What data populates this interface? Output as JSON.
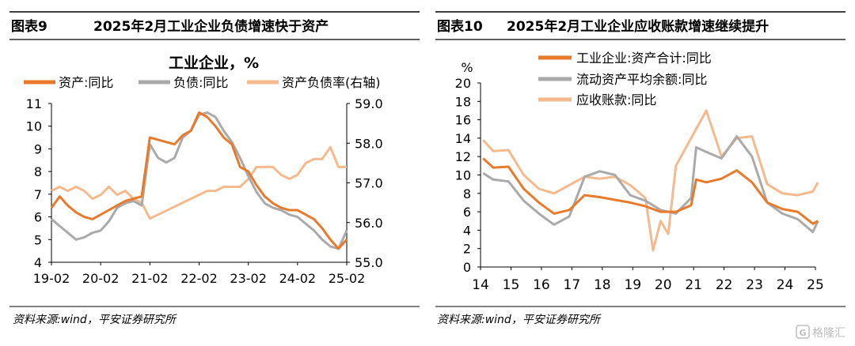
{
  "panels": [
    {
      "fig_label": "图表9",
      "title": "2025年2月工业企业负债增速快于资产",
      "source": "资料来源:wind，平安证券研究所"
    },
    {
      "fig_label": "图表10",
      "title": "2025年2月工业企业应收账款增速继续提升",
      "source": "资料来源:wind，平安证券研究所"
    }
  ],
  "watermark": "格隆汇",
  "colors": {
    "orange": "#E87A2C",
    "gray": "#AAAAAA",
    "peach": "#F5B98E",
    "rule": "#000000"
  },
  "chart_data": [
    {
      "type": "line",
      "title": "工业企业，%",
      "x_ticks": [
        "19-02",
        "20-02",
        "21-02",
        "22-02",
        "23-02",
        "24-02",
        "25-02"
      ],
      "y_left": {
        "range": [
          4,
          11
        ],
        "ticks": [
          "4",
          "5",
          "6",
          "7",
          "8",
          "9",
          "10",
          "11"
        ]
      },
      "y_right": {
        "range": [
          55.0,
          59.0
        ],
        "ticks": [
          "55.0",
          "56.0",
          "57.0",
          "58.0",
          "59.0"
        ]
      },
      "legend_position": "top",
      "series": [
        {
          "name": "资产:同比",
          "axis": "left",
          "color": "#E87A2C",
          "width": 3,
          "points": [
            [
              "2019-02",
              6.4
            ],
            [
              "2019-04",
              6.9
            ],
            [
              "2019-06",
              6.5
            ],
            [
              "2019-08",
              6.2
            ],
            [
              "2019-10",
              6.0
            ],
            [
              "2019-12",
              5.9
            ],
            [
              "2020-02",
              6.1
            ],
            [
              "2020-04",
              6.3
            ],
            [
              "2020-06",
              6.5
            ],
            [
              "2020-08",
              6.7
            ],
            [
              "2020-10",
              6.8
            ],
            [
              "2020-12",
              6.9
            ],
            [
              "2021-02",
              9.5
            ],
            [
              "2021-04",
              9.4
            ],
            [
              "2021-06",
              9.3
            ],
            [
              "2021-08",
              9.2
            ],
            [
              "2021-10",
              9.6
            ],
            [
              "2021-12",
              9.8
            ],
            [
              "2022-02",
              10.6
            ],
            [
              "2022-04",
              10.4
            ],
            [
              "2022-06",
              10.0
            ],
            [
              "2022-08",
              9.5
            ],
            [
              "2022-10",
              9.2
            ],
            [
              "2022-12",
              8.2
            ],
            [
              "2023-02",
              8.0
            ],
            [
              "2023-04",
              7.4
            ],
            [
              "2023-06",
              6.9
            ],
            [
              "2023-08",
              6.6
            ],
            [
              "2023-10",
              6.4
            ],
            [
              "2023-12",
              6.3
            ],
            [
              "2024-02",
              6.3
            ],
            [
              "2024-04",
              6.1
            ],
            [
              "2024-06",
              5.9
            ],
            [
              "2024-08",
              5.5
            ],
            [
              "2024-10",
              5.0
            ],
            [
              "2024-12",
              4.6
            ],
            [
              "2025-02",
              5.0
            ]
          ]
        },
        {
          "name": "负债:同比",
          "axis": "left",
          "color": "#AAAAAA",
          "width": 3,
          "points": [
            [
              "2019-02",
              5.9
            ],
            [
              "2019-04",
              5.6
            ],
            [
              "2019-06",
              5.3
            ],
            [
              "2019-08",
              5.0
            ],
            [
              "2019-10",
              5.1
            ],
            [
              "2019-12",
              5.3
            ],
            [
              "2020-02",
              5.4
            ],
            [
              "2020-04",
              5.8
            ],
            [
              "2020-06",
              6.4
            ],
            [
              "2020-08",
              6.6
            ],
            [
              "2020-10",
              6.7
            ],
            [
              "2020-12",
              6.5
            ],
            [
              "2021-02",
              9.2
            ],
            [
              "2021-04",
              8.6
            ],
            [
              "2021-06",
              8.4
            ],
            [
              "2021-08",
              8.6
            ],
            [
              "2021-10",
              9.5
            ],
            [
              "2021-12",
              9.8
            ],
            [
              "2022-02",
              10.5
            ],
            [
              "2022-04",
              10.6
            ],
            [
              "2022-06",
              10.4
            ],
            [
              "2022-08",
              9.8
            ],
            [
              "2022-10",
              9.3
            ],
            [
              "2022-12",
              8.6
            ],
            [
              "2023-02",
              7.8
            ],
            [
              "2023-04",
              7.1
            ],
            [
              "2023-06",
              6.6
            ],
            [
              "2023-08",
              6.4
            ],
            [
              "2023-10",
              6.3
            ],
            [
              "2023-12",
              6.1
            ],
            [
              "2024-02",
              6.0
            ],
            [
              "2024-04",
              5.7
            ],
            [
              "2024-06",
              5.4
            ],
            [
              "2024-08",
              5.0
            ],
            [
              "2024-10",
              4.7
            ],
            [
              "2024-12",
              4.6
            ],
            [
              "2025-02",
              5.4
            ]
          ]
        },
        {
          "name": "资产负债率(右轴)",
          "axis": "right",
          "color": "#F5B98E",
          "width": 3,
          "points": [
            [
              "2019-02",
              56.8
            ],
            [
              "2019-04",
              56.9
            ],
            [
              "2019-06",
              56.8
            ],
            [
              "2019-08",
              56.9
            ],
            [
              "2019-10",
              56.8
            ],
            [
              "2019-12",
              56.6
            ],
            [
              "2020-02",
              56.7
            ],
            [
              "2020-04",
              56.9
            ],
            [
              "2020-06",
              56.7
            ],
            [
              "2020-08",
              56.8
            ],
            [
              "2020-10",
              56.6
            ],
            [
              "2020-12",
              56.5
            ],
            [
              "2021-02",
              56.1
            ],
            [
              "2021-04",
              56.2
            ],
            [
              "2021-06",
              56.3
            ],
            [
              "2021-08",
              56.4
            ],
            [
              "2021-10",
              56.5
            ],
            [
              "2021-12",
              56.6
            ],
            [
              "2022-02",
              56.7
            ],
            [
              "2022-04",
              56.8
            ],
            [
              "2022-06",
              56.8
            ],
            [
              "2022-08",
              56.9
            ],
            [
              "2022-10",
              56.9
            ],
            [
              "2022-12",
              56.9
            ],
            [
              "2023-02",
              57.1
            ],
            [
              "2023-04",
              57.4
            ],
            [
              "2023-06",
              57.4
            ],
            [
              "2023-08",
              57.4
            ],
            [
              "2023-10",
              57.2
            ],
            [
              "2023-12",
              57.1
            ],
            [
              "2024-02",
              57.2
            ],
            [
              "2024-04",
              57.5
            ],
            [
              "2024-06",
              57.6
            ],
            [
              "2024-08",
              57.6
            ],
            [
              "2024-10",
              57.9
            ],
            [
              "2024-12",
              57.4
            ],
            [
              "2025-02",
              57.4
            ]
          ]
        }
      ]
    },
    {
      "type": "line",
      "y_unit": "%",
      "x_ticks": [
        "14",
        "15",
        "16",
        "17",
        "18",
        "19",
        "20",
        "21",
        "22",
        "23",
        "24",
        "25"
      ],
      "y": {
        "range": [
          0,
          20
        ],
        "ticks": [
          "0",
          "2",
          "4",
          "6",
          "8",
          "10",
          "12",
          "14",
          "16",
          "18",
          "20"
        ]
      },
      "legend_position": "top",
      "series": [
        {
          "name": "工业企业:资产合计:同比",
          "color": "#E87A2C",
          "width": 3,
          "points": [
            [
              "2014-02",
              11.8
            ],
            [
              "2014-06",
              10.8
            ],
            [
              "2014-12",
              10.9
            ],
            [
              "2015-06",
              8.5
            ],
            [
              "2015-12",
              7.0
            ],
            [
              "2016-06",
              5.8
            ],
            [
              "2016-12",
              6.2
            ],
            [
              "2017-06",
              7.8
            ],
            [
              "2017-12",
              7.6
            ],
            [
              "2018-06",
              7.3
            ],
            [
              "2018-12",
              7.0
            ],
            [
              "2019-06",
              6.6
            ],
            [
              "2019-12",
              6.0
            ],
            [
              "2020-06",
              6.0
            ],
            [
              "2020-12",
              6.7
            ],
            [
              "2021-02",
              9.5
            ],
            [
              "2021-06",
              9.2
            ],
            [
              "2021-12",
              9.6
            ],
            [
              "2022-06",
              10.5
            ],
            [
              "2022-12",
              9.2
            ],
            [
              "2023-06",
              7.0
            ],
            [
              "2023-12",
              6.3
            ],
            [
              "2024-06",
              6.0
            ],
            [
              "2024-12",
              4.7
            ],
            [
              "2025-02",
              5.0
            ]
          ]
        },
        {
          "name": "流动资产平均余额:同比",
          "color": "#AAAAAA",
          "width": 3,
          "points": [
            [
              "2014-02",
              10.2
            ],
            [
              "2014-06",
              9.5
            ],
            [
              "2014-12",
              9.3
            ],
            [
              "2015-06",
              7.2
            ],
            [
              "2015-12",
              5.8
            ],
            [
              "2016-06",
              4.6
            ],
            [
              "2016-12",
              5.5
            ],
            [
              "2017-06",
              9.8
            ],
            [
              "2017-12",
              10.4
            ],
            [
              "2018-06",
              10.0
            ],
            [
              "2018-12",
              7.8
            ],
            [
              "2019-06",
              7.2
            ],
            [
              "2019-12",
              6.2
            ],
            [
              "2020-06",
              5.8
            ],
            [
              "2020-12",
              7.5
            ],
            [
              "2021-02",
              13.0
            ],
            [
              "2021-06",
              12.5
            ],
            [
              "2021-12",
              11.8
            ],
            [
              "2022-06",
              14.2
            ],
            [
              "2022-12",
              12.0
            ],
            [
              "2023-06",
              7.0
            ],
            [
              "2023-12",
              5.8
            ],
            [
              "2024-06",
              5.2
            ],
            [
              "2024-12",
              3.8
            ],
            [
              "2025-02",
              5.0
            ]
          ]
        },
        {
          "name": "应收账款:同比",
          "color": "#F5B98E",
          "width": 3,
          "points": [
            [
              "2014-02",
              13.8
            ],
            [
              "2014-06",
              12.6
            ],
            [
              "2014-12",
              12.7
            ],
            [
              "2015-06",
              10.0
            ],
            [
              "2015-12",
              8.5
            ],
            [
              "2016-06",
              8.0
            ],
            [
              "2016-12",
              8.9
            ],
            [
              "2017-06",
              9.8
            ],
            [
              "2017-12",
              9.6
            ],
            [
              "2018-06",
              9.8
            ],
            [
              "2018-12",
              8.9
            ],
            [
              "2019-06",
              7.5
            ],
            [
              "2019-09",
              1.8
            ],
            [
              "2019-12",
              5.0
            ],
            [
              "2020-03",
              3.6
            ],
            [
              "2020-06",
              11.0
            ],
            [
              "2020-12",
              14.0
            ],
            [
              "2021-06",
              17.0
            ],
            [
              "2021-12",
              12.0
            ],
            [
              "2022-06",
              14.0
            ],
            [
              "2022-12",
              14.2
            ],
            [
              "2023-06",
              9.0
            ],
            [
              "2023-12",
              8.0
            ],
            [
              "2024-06",
              7.8
            ],
            [
              "2024-12",
              8.2
            ],
            [
              "2025-02",
              9.2
            ]
          ]
        }
      ]
    }
  ]
}
